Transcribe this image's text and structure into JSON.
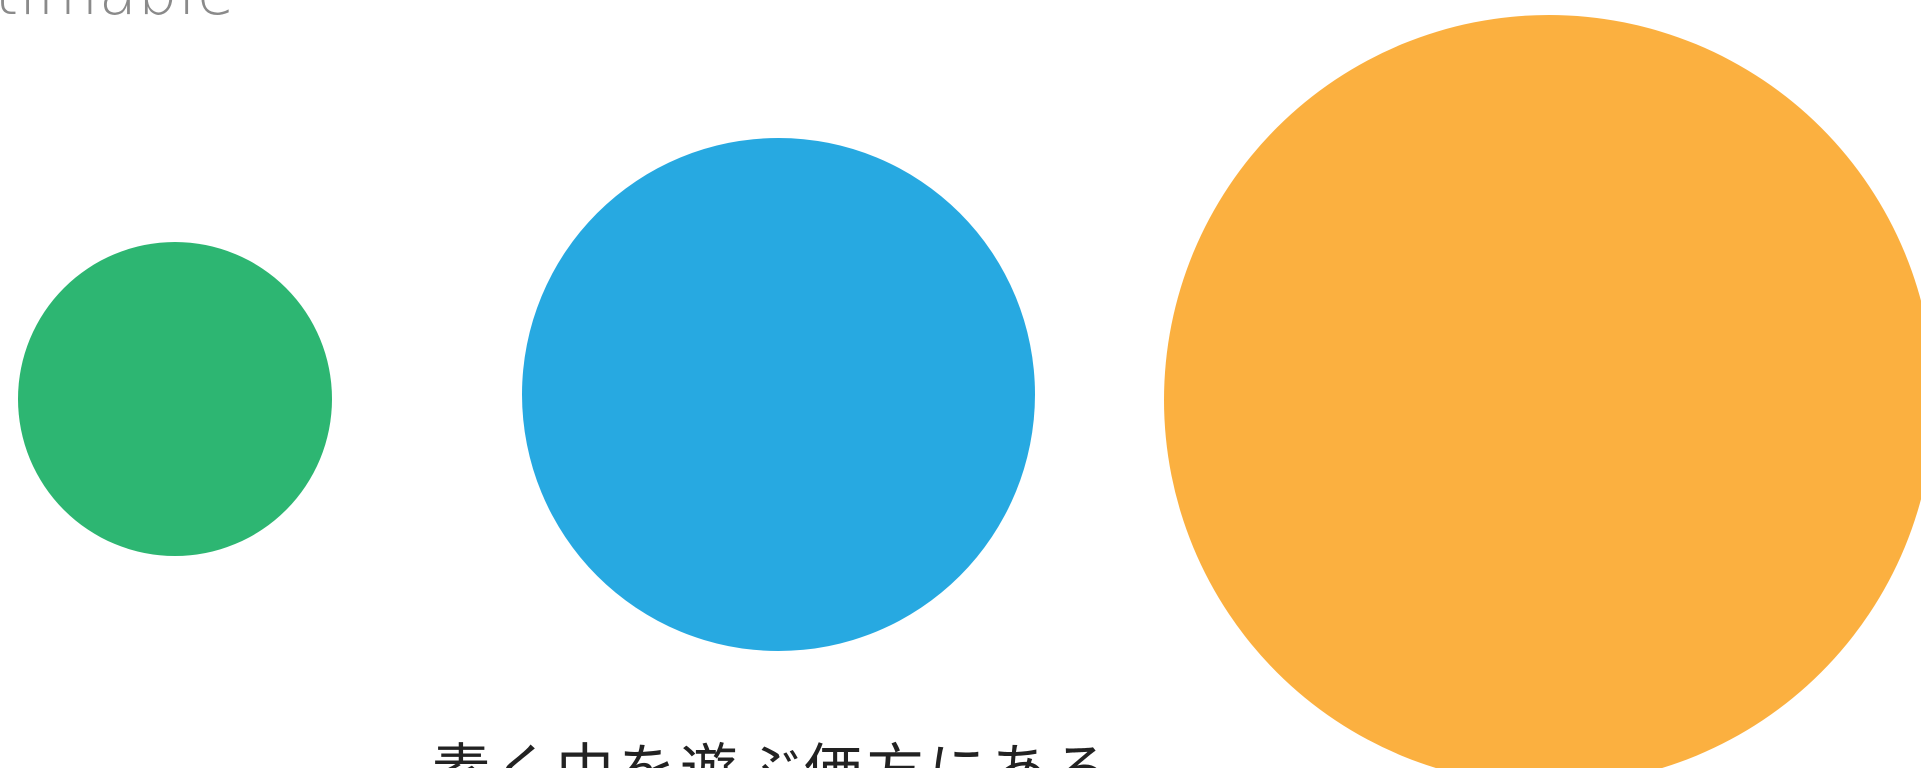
{
  "top_text": "timable",
  "caption": "素く中を遊ぶ価方にある",
  "colors": {
    "small_circle": "#2db672",
    "medium_circle": "#27a9e1",
    "large_circle": "#fbb040"
  }
}
